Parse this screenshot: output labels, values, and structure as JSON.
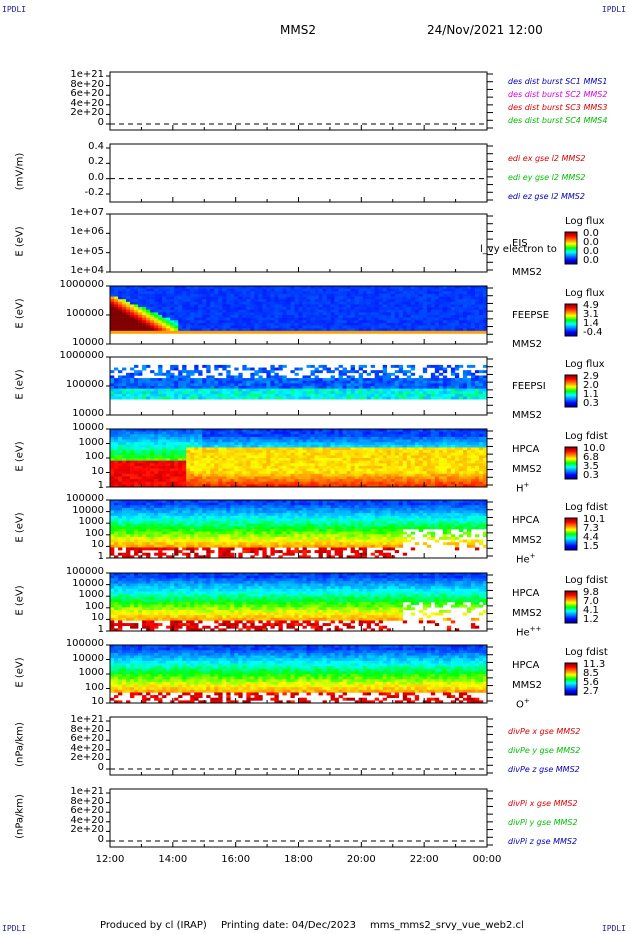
{
  "corner_labels": {
    "tl": "IPDLI",
    "tr": "IPDLI",
    "bl": "IPDLI",
    "br": "IPDLI"
  },
  "header": {
    "spacecraft": "MMS2",
    "date": "24/Nov/2021 12:00"
  },
  "footer": {
    "producer": "Produced by cl (IRAP)",
    "printing": "Printing date: 04/Dec/2023",
    "file": "mms_mms2_srvy_vue_web2.cl"
  },
  "colors": {
    "red": "#e00000",
    "magenta": "#e000e0",
    "green": "#00c000",
    "blue": "#0000c0"
  },
  "x_axis": {
    "ticks": [
      "12:00",
      "14:00",
      "16:00",
      "18:00",
      "20:00",
      "22:00",
      "00:00"
    ]
  },
  "chart_data": [
    {
      "type": "line",
      "panel": "dist",
      "ylabel": "",
      "yticks": [
        "1e+21",
        "8e+20",
        "6e+20",
        "4e+20",
        "2e+20",
        "0"
      ],
      "ylim": [
        0,
        1e+21
      ],
      "legend": [
        "des dist burst SC1 MMS1",
        "des dist burst SC2 MMS2",
        "des dist burst SC3 MMS3",
        "des dist burst SC4 MMS4"
      ],
      "legend_colors": [
        "#0000c0",
        "#e000e0",
        "#e00000",
        "#00c000"
      ]
    },
    {
      "type": "line",
      "panel": "edi",
      "ylabel": "(mV/m)",
      "yticks": [
        "0.4",
        "0.2",
        "0.0",
        "-0.2"
      ],
      "ylim": [
        -0.3,
        0.5
      ],
      "legend": [
        "edi ex gse l2 MMS2",
        "edi ey gse l2 MMS2",
        "edi ez gse l2 MMS2"
      ],
      "legend_colors": [
        "#e00000",
        "#00c000",
        "#0000c0"
      ]
    },
    {
      "type": "heatmap",
      "panel": "eis",
      "ylabel": "E (eV)",
      "yticks": [
        "1e+07",
        "1e+06",
        "1e+05",
        "1e+04"
      ],
      "scale": "log",
      "instrument": [
        "EIS"
      ],
      "sc": "MMS2",
      "overlay": "l_vy electron to",
      "cb_title": "Log flux",
      "cb_ticks": [
        "0.0",
        "0.0",
        "0.0",
        "0.0"
      ]
    },
    {
      "type": "heatmap",
      "panel": "feepse",
      "ylabel": "E (eV)",
      "yticks": [
        "1000000",
        "100000",
        "10000"
      ],
      "scale": "log",
      "instrument": [
        "FEEPSE"
      ],
      "sc": "MMS2",
      "cb_title": "Log flux",
      "cb_ticks": [
        "4.9",
        "3.1",
        "1.4",
        "-0.4"
      ]
    },
    {
      "type": "heatmap",
      "panel": "feepsi",
      "ylabel": "E (eV)",
      "yticks": [
        "1000000",
        "100000",
        "10000"
      ],
      "scale": "log",
      "instrument": [
        "FEEPSI"
      ],
      "sc": "MMS2",
      "cb_title": "Log flux",
      "cb_ticks": [
        "2.9",
        "2.0",
        "1.1",
        "0.3"
      ]
    },
    {
      "type": "heatmap",
      "panel": "hpca_h",
      "ylabel": "E (eV)",
      "yticks": [
        "10000",
        "1000",
        "100",
        "10",
        "1"
      ],
      "scale": "log",
      "instrument": [
        "HPCA"
      ],
      "sc": "MMS2",
      "species": "H+",
      "cb_title": "Log fdist",
      "cb_ticks": [
        "10.0",
        "6.8",
        "3.5",
        "0.3"
      ]
    },
    {
      "type": "heatmap",
      "panel": "hpca_he",
      "ylabel": "E (eV)",
      "yticks": [
        "100000",
        "10000",
        "1000",
        "100",
        "10",
        "1"
      ],
      "scale": "log",
      "instrument": [
        "HPCA"
      ],
      "sc": "MMS2",
      "species": "He+",
      "cb_title": "Log fdist",
      "cb_ticks": [
        "10.1",
        "7.3",
        "4.4",
        "1.5"
      ]
    },
    {
      "type": "heatmap",
      "panel": "hpca_hepp",
      "ylabel": "E (eV)",
      "yticks": [
        "100000",
        "10000",
        "1000",
        "100",
        "10",
        "1"
      ],
      "scale": "log",
      "instrument": [
        "HPCA"
      ],
      "sc": "MMS2",
      "species": "He++",
      "cb_title": "Log fdist",
      "cb_ticks": [
        "9.8",
        "7.0",
        "4.1",
        "1.2"
      ]
    },
    {
      "type": "heatmap",
      "panel": "hpca_o",
      "ylabel": "E (eV)",
      "yticks": [
        "100000",
        "10000",
        "1000",
        "100",
        "10"
      ],
      "scale": "log",
      "instrument": [
        "HPCA"
      ],
      "sc": "MMS2",
      "species": "O+",
      "cb_title": "Log fdist",
      "cb_ticks": [
        "11.3",
        "8.5",
        "5.6",
        "2.7"
      ]
    },
    {
      "type": "line",
      "panel": "divpe",
      "ylabel": "(nPa/km)",
      "yticks": [
        "1e+21",
        "8e+20",
        "6e+20",
        "4e+20",
        "2e+20",
        "0"
      ],
      "ylim": [
        0,
        1e+21
      ],
      "legend": [
        "divPe x gse MMS2",
        "divPe y gse MMS2",
        "divPe z gse MMS2"
      ],
      "legend_colors": [
        "#e00000",
        "#00c000",
        "#0000c0"
      ]
    },
    {
      "type": "line",
      "panel": "divpi",
      "ylabel": "(nPa/km)",
      "yticks": [
        "1e+21",
        "8e+20",
        "6e+20",
        "4e+20",
        "2e+20",
        "0"
      ],
      "ylim": [
        0,
        1e+21
      ],
      "legend": [
        "divPi x gse MMS2",
        "divPi y gse MMS2",
        "divPi z gse MMS2"
      ],
      "legend_colors": [
        "#e00000",
        "#00c000",
        "#0000c0"
      ]
    }
  ]
}
